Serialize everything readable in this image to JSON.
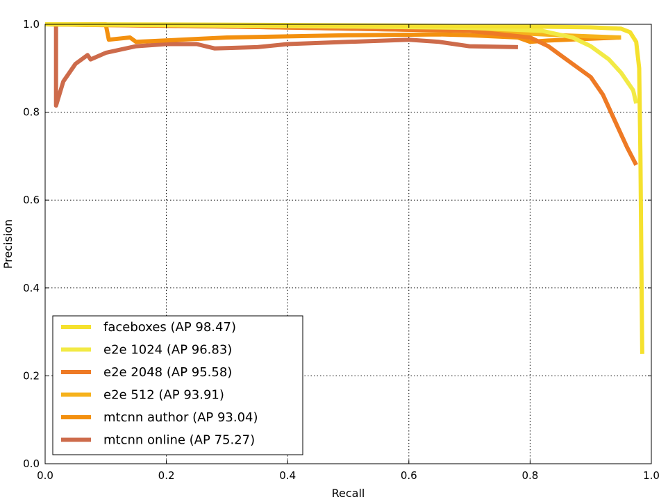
{
  "chart_data": {
    "type": "line",
    "title": "",
    "xlabel": "Recall",
    "ylabel": "Precision",
    "xlim": [
      0.0,
      1.0
    ],
    "ylim": [
      0.0,
      1.0
    ],
    "xticks": [
      "0.0",
      "0.2",
      "0.4",
      "0.6",
      "0.8",
      "1.0"
    ],
    "yticks": [
      "0.0",
      "0.2",
      "0.4",
      "0.6",
      "0.8",
      "1.0"
    ],
    "grid": true,
    "legend_position": "lower-left",
    "series": [
      {
        "name": "faceboxes (AP 98.47)",
        "color": "#f5e12e",
        "points": [
          [
            0.0,
            1.0
          ],
          [
            0.3,
            0.999
          ],
          [
            0.6,
            0.997
          ],
          [
            0.8,
            0.995
          ],
          [
            0.9,
            0.993
          ],
          [
            0.95,
            0.99
          ],
          [
            0.965,
            0.982
          ],
          [
            0.975,
            0.96
          ],
          [
            0.98,
            0.9
          ],
          [
            0.982,
            0.7
          ],
          [
            0.984,
            0.4
          ],
          [
            0.985,
            0.25
          ]
        ]
      },
      {
        "name": "e2e 1024 (AP 96.83)",
        "color": "#f2ea45",
        "points": [
          [
            0.0,
            1.0
          ],
          [
            0.3,
            0.997
          ],
          [
            0.5,
            0.995
          ],
          [
            0.7,
            0.992
          ],
          [
            0.82,
            0.985
          ],
          [
            0.87,
            0.97
          ],
          [
            0.9,
            0.95
          ],
          [
            0.93,
            0.92
          ],
          [
            0.95,
            0.89
          ],
          [
            0.97,
            0.85
          ],
          [
            0.975,
            0.82
          ]
        ]
      },
      {
        "name": "e2e 2048 (AP 95.58)",
        "color": "#ee7a25",
        "points": [
          [
            0.0,
            1.0
          ],
          [
            0.3,
            0.995
          ],
          [
            0.5,
            0.99
          ],
          [
            0.7,
            0.985
          ],
          [
            0.8,
            0.97
          ],
          [
            0.83,
            0.95
          ],
          [
            0.85,
            0.93
          ],
          [
            0.87,
            0.91
          ],
          [
            0.9,
            0.88
          ],
          [
            0.92,
            0.84
          ],
          [
            0.94,
            0.78
          ],
          [
            0.96,
            0.72
          ],
          [
            0.975,
            0.68
          ]
        ]
      },
      {
        "name": "e2e 512 (AP 93.91)",
        "color": "#f6b21c",
        "points": [
          [
            0.0,
            1.0
          ],
          [
            0.1,
            0.998
          ],
          [
            0.3,
            0.995
          ],
          [
            0.5,
            0.99
          ],
          [
            0.7,
            0.985
          ],
          [
            0.85,
            0.975
          ],
          [
            0.95,
            0.97
          ]
        ]
      },
      {
        "name": "mtcnn author (AP 93.04)",
        "color": "#f3900f",
        "points": [
          [
            0.0,
            1.0
          ],
          [
            0.1,
            1.0
          ],
          [
            0.105,
            0.965
          ],
          [
            0.14,
            0.97
          ],
          [
            0.15,
            0.96
          ],
          [
            0.3,
            0.97
          ],
          [
            0.5,
            0.975
          ],
          [
            0.65,
            0.977
          ],
          [
            0.7,
            0.975
          ],
          [
            0.78,
            0.97
          ],
          [
            0.8,
            0.96
          ],
          [
            0.83,
            0.963
          ],
          [
            0.95,
            0.97
          ]
        ]
      },
      {
        "name": "mtcnn online (AP 75.27)",
        "color": "#cd6b4b",
        "points": [
          [
            0.018,
            1.0
          ],
          [
            0.018,
            0.815
          ],
          [
            0.03,
            0.87
          ],
          [
            0.05,
            0.91
          ],
          [
            0.07,
            0.93
          ],
          [
            0.075,
            0.92
          ],
          [
            0.1,
            0.935
          ],
          [
            0.15,
            0.95
          ],
          [
            0.2,
            0.955
          ],
          [
            0.25,
            0.955
          ],
          [
            0.28,
            0.945
          ],
          [
            0.35,
            0.948
          ],
          [
            0.4,
            0.955
          ],
          [
            0.5,
            0.96
          ],
          [
            0.6,
            0.965
          ],
          [
            0.65,
            0.96
          ],
          [
            0.7,
            0.95
          ],
          [
            0.78,
            0.948
          ]
        ]
      }
    ]
  }
}
